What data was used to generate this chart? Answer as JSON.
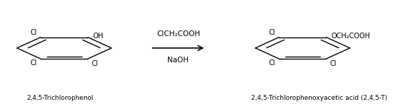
{
  "bg_color": "#ffffff",
  "figsize": [
    5.79,
    1.54
  ],
  "dpi": 100,
  "reagent_line1": "ClCH₂COOH",
  "reagent_line2": "NaOH",
  "label_left": "2,4,5-Trichlorophenol",
  "label_right": "2,4,5-Trichlorophenoxyacetic acid (2,4,5-T)"
}
